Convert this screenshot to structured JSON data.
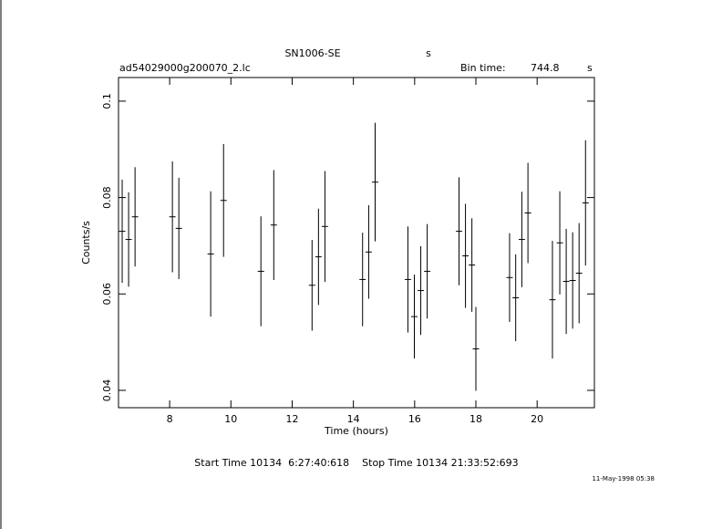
{
  "chart_data": {
    "type": "errorbar",
    "title": "SN1006-SE",
    "title_unit": "s",
    "file_name": "ad54029000g200070_2.lc",
    "bin_time_label": "Bin time:",
    "bin_time": 744.8,
    "bin_time_unit": "s",
    "xlabel": "Time (hours)",
    "ylabel": "Counts/s",
    "time_range": "Start Time 10134  6:27:40:618    Stop Time 10134 21:33:52:693",
    "timestamp": "11-May-1998 05:38",
    "color": "#000000",
    "xlim": [
      6.33,
      21.87
    ],
    "ylim": [
      0.0364,
      0.1049
    ],
    "xticks": [
      8,
      10,
      12,
      14,
      16,
      18,
      20
    ],
    "yticks": [
      0.04,
      0.06,
      0.08,
      0.1
    ],
    "x": [
      6.45,
      6.66,
      6.87,
      8.09,
      8.3,
      9.34,
      9.76,
      10.98,
      11.4,
      12.65,
      12.86,
      13.07,
      14.3,
      14.5,
      14.71,
      15.78,
      15.99,
      16.2,
      16.41,
      17.45,
      17.66,
      17.87,
      18.0,
      19.1,
      19.3,
      19.5,
      19.7,
      20.5,
      20.74,
      20.95,
      21.16,
      21.37,
      21.58
    ],
    "values": [
      0.073,
      0.0713,
      0.076,
      0.076,
      0.0736,
      0.0683,
      0.0794,
      0.0647,
      0.0743,
      0.0618,
      0.0677,
      0.074,
      0.063,
      0.0687,
      0.0832,
      0.063,
      0.0553,
      0.0607,
      0.0647,
      0.073,
      0.0679,
      0.066,
      0.0486,
      0.0634,
      0.0592,
      0.0713,
      0.0768,
      0.0588,
      0.0706,
      0.0626,
      0.0628,
      0.0643,
      0.0789
    ],
    "errors": [
      0.0107,
      0.0098,
      0.0103,
      0.0115,
      0.0105,
      0.013,
      0.0117,
      0.0114,
      0.0114,
      0.0094,
      0.01,
      0.0115,
      0.0097,
      0.0097,
      0.0123,
      0.011,
      0.0087,
      0.0092,
      0.0098,
      0.0112,
      0.0108,
      0.0097,
      0.0087,
      0.0092,
      0.009,
      0.0099,
      0.0104,
      0.0122,
      0.0107,
      0.0109,
      0.01,
      0.0104,
      0.013
    ]
  }
}
